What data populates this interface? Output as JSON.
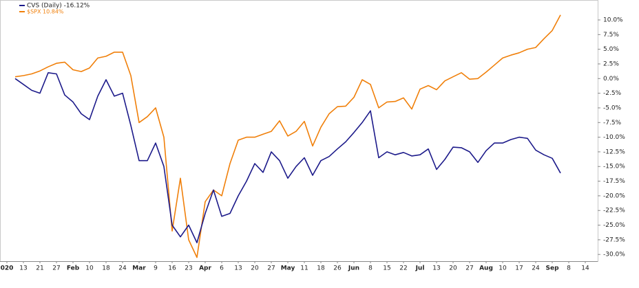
{
  "chart_data": {
    "type": "line",
    "categories": [
      "020",
      null,
      "13",
      null,
      "21",
      null,
      "27",
      null,
      "Feb",
      null,
      "10",
      null,
      "18",
      null,
      "24",
      null,
      "Mar",
      null,
      "9",
      null,
      "16",
      null,
      "23",
      null,
      "Apr",
      null,
      "6",
      null,
      "13",
      null,
      "20",
      null,
      "27",
      null,
      "May",
      null,
      "11",
      null,
      "18",
      null,
      "26",
      null,
      "Jun",
      null,
      "8",
      null,
      "15",
      null,
      "22",
      null,
      "Jul",
      null,
      "13",
      null,
      "20",
      null,
      "27",
      null,
      "Aug",
      null,
      "10",
      null,
      "17",
      null,
      "24",
      null,
      "Sep",
      null,
      "8",
      null,
      "14"
    ],
    "series": [
      {
        "name": "CVS (Daily) -16.12%",
        "color": "#1c1a8a",
        "values": [
          null,
          0,
          -1,
          -2,
          -2.5,
          1,
          0.8,
          -2.8,
          -4,
          -6,
          -7,
          -3,
          -0.2,
          -3,
          -2.5,
          -8,
          -14,
          -14,
          -11,
          -15,
          -25,
          -27,
          -25,
          -28,
          -23,
          -19,
          -23.5,
          -23,
          -20,
          -17.5,
          -14.5,
          -16,
          -12.5,
          -14,
          -17,
          -15,
          -13.5,
          -16.5,
          -14,
          -13.3,
          -12,
          -10.8,
          -9.2,
          -7.5,
          -5.5,
          -13.5,
          -12.5,
          -13,
          -12.6,
          -13.2,
          -13,
          -12,
          -15.5,
          -13.8,
          -11.7,
          -11.8,
          -12.5,
          -14.3,
          -12.3,
          -11,
          -11,
          -10.4,
          -10,
          -10.2,
          -12.2,
          -13,
          -13.6,
          -16.12,
          null,
          null,
          null
        ]
      },
      {
        "name": "$SPX 10.84%",
        "color": "#f07f09",
        "values": [
          null,
          0.3,
          0.5,
          0.8,
          1.3,
          2.0,
          2.6,
          2.8,
          1.5,
          1.2,
          1.8,
          3.5,
          3.8,
          4.5,
          4.5,
          0.5,
          -7.5,
          -6.5,
          -5,
          -10,
          -26,
          -17,
          -27.5,
          -30.5,
          -21,
          -19,
          -20,
          -14.5,
          -10.5,
          -10,
          -10,
          -9.5,
          -9,
          -7.2,
          -9.8,
          -9,
          -7.3,
          -11.5,
          -8.3,
          -6,
          -4.8,
          -4.7,
          -3.2,
          -0.2,
          -1,
          -5,
          -4,
          -3.9,
          -3.3,
          -5.2,
          -1.8,
          -1.2,
          -1.9,
          -0.4,
          0.3,
          1,
          -0.1,
          0,
          1.1,
          2.3,
          3.5,
          4,
          4.4,
          5,
          5.3,
          6.8,
          8.2,
          10.84,
          null,
          null,
          null
        ]
      }
    ],
    "ylim": [
      -31.15,
      13.4
    ],
    "yticks": [
      {
        "value": 10,
        "label": "10.0%"
      },
      {
        "value": 7.5,
        "label": "7.5%"
      },
      {
        "value": 5,
        "label": "5.0%"
      },
      {
        "value": 2.5,
        "label": "2.5%"
      },
      {
        "value": 0,
        "label": "0.0%"
      },
      {
        "value": -2.5,
        "label": "-2.5%"
      },
      {
        "value": -5,
        "label": "-5.0%"
      },
      {
        "value": -7.5,
        "label": "-7.5%"
      },
      {
        "value": -10,
        "label": "-10.0%"
      },
      {
        "value": -12.5,
        "label": "-12.5%"
      },
      {
        "value": -15,
        "label": "-15.0%"
      },
      {
        "value": -17.5,
        "label": "-17.5%"
      },
      {
        "value": -20,
        "label": "-20.0%"
      },
      {
        "value": -22.5,
        "label": "-22.5%"
      },
      {
        "value": -25,
        "label": "-25.0%"
      },
      {
        "value": -27.5,
        "label": "-27.5%"
      },
      {
        "value": -30,
        "label": "-30.0%"
      }
    ]
  }
}
